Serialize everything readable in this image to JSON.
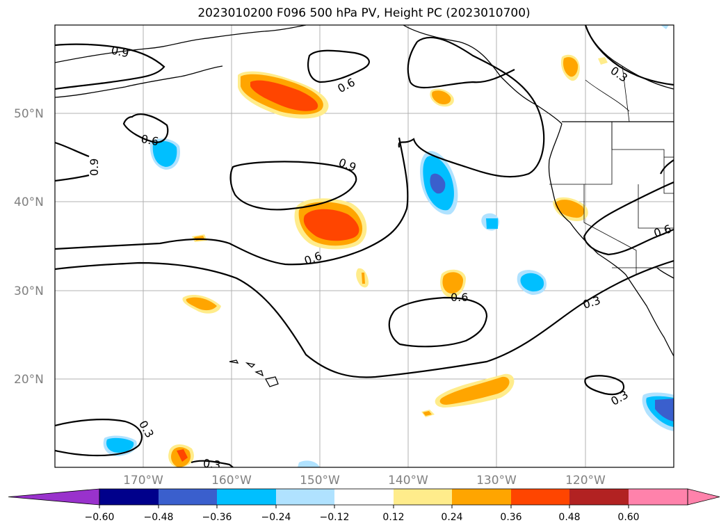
{
  "title": "2023010200 F096 500 hPa PV, Height PC (2023010700)",
  "lat_labels": [
    "50°N",
    "40°N",
    "30°N",
    "20°N"
  ],
  "lon_labels": [
    "170°W",
    "160°W",
    "150°W",
    "140°W",
    "130°W",
    "120°W"
  ],
  "contour_labels": [
    "0.9",
    "0.6",
    "0.6",
    "0.9",
    "0.9",
    "0.6",
    "0.6",
    "0.3",
    "0.6",
    "0.3",
    "0.3",
    "0.3",
    "0.3"
  ],
  "colorbar": {
    "ticks": [
      "−0.60",
      "−0.48",
      "−0.36",
      "−0.24",
      "−0.12",
      "0.12",
      "0.24",
      "0.36",
      "0.48",
      "0.60"
    ],
    "colors": [
      "#9932cc",
      "#00008b",
      "#3a5fcd",
      "#00bfff",
      "#b0e2ff",
      "#ffffff",
      "#ffec8b",
      "#ffa500",
      "#ff4500",
      "#b22222",
      "#ff82ab",
      "#ff82ab"
    ]
  }
}
